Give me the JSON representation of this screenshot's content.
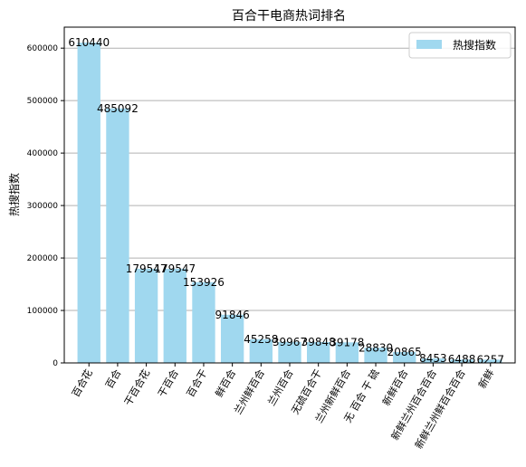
{
  "chart_data": {
    "type": "bar",
    "title": "百合干电商热词排名",
    "xlabel": "",
    "ylabel": "热搜指数",
    "categories": [
      "百合花",
      "百合",
      "干百合花",
      "干百合",
      "百合干",
      "鲜百合",
      "兰州鲜百合",
      "兰州百合",
      "无硫百合干",
      "兰州新鲜百合",
      "无 百合 干 硫",
      "新鲜百合",
      "新鲜兰州百合百合",
      "新鲜兰州鲜百合百合",
      "新鲜"
    ],
    "series": [
      {
        "name": "热搜指数",
        "values": [
          610440,
          485092,
          179547,
          179547,
          153926,
          91846,
          45258,
          39967,
          39848,
          39178,
          28830,
          20865,
          8453,
          6488,
          6257
        ],
        "color": "#a0d8ef"
      }
    ],
    "ylim": [
      0,
      640000
    ],
    "yticks": [
      0,
      100000,
      200000,
      300000,
      400000,
      500000,
      600000
    ],
    "grid": "y",
    "legend_position": "upper right"
  }
}
